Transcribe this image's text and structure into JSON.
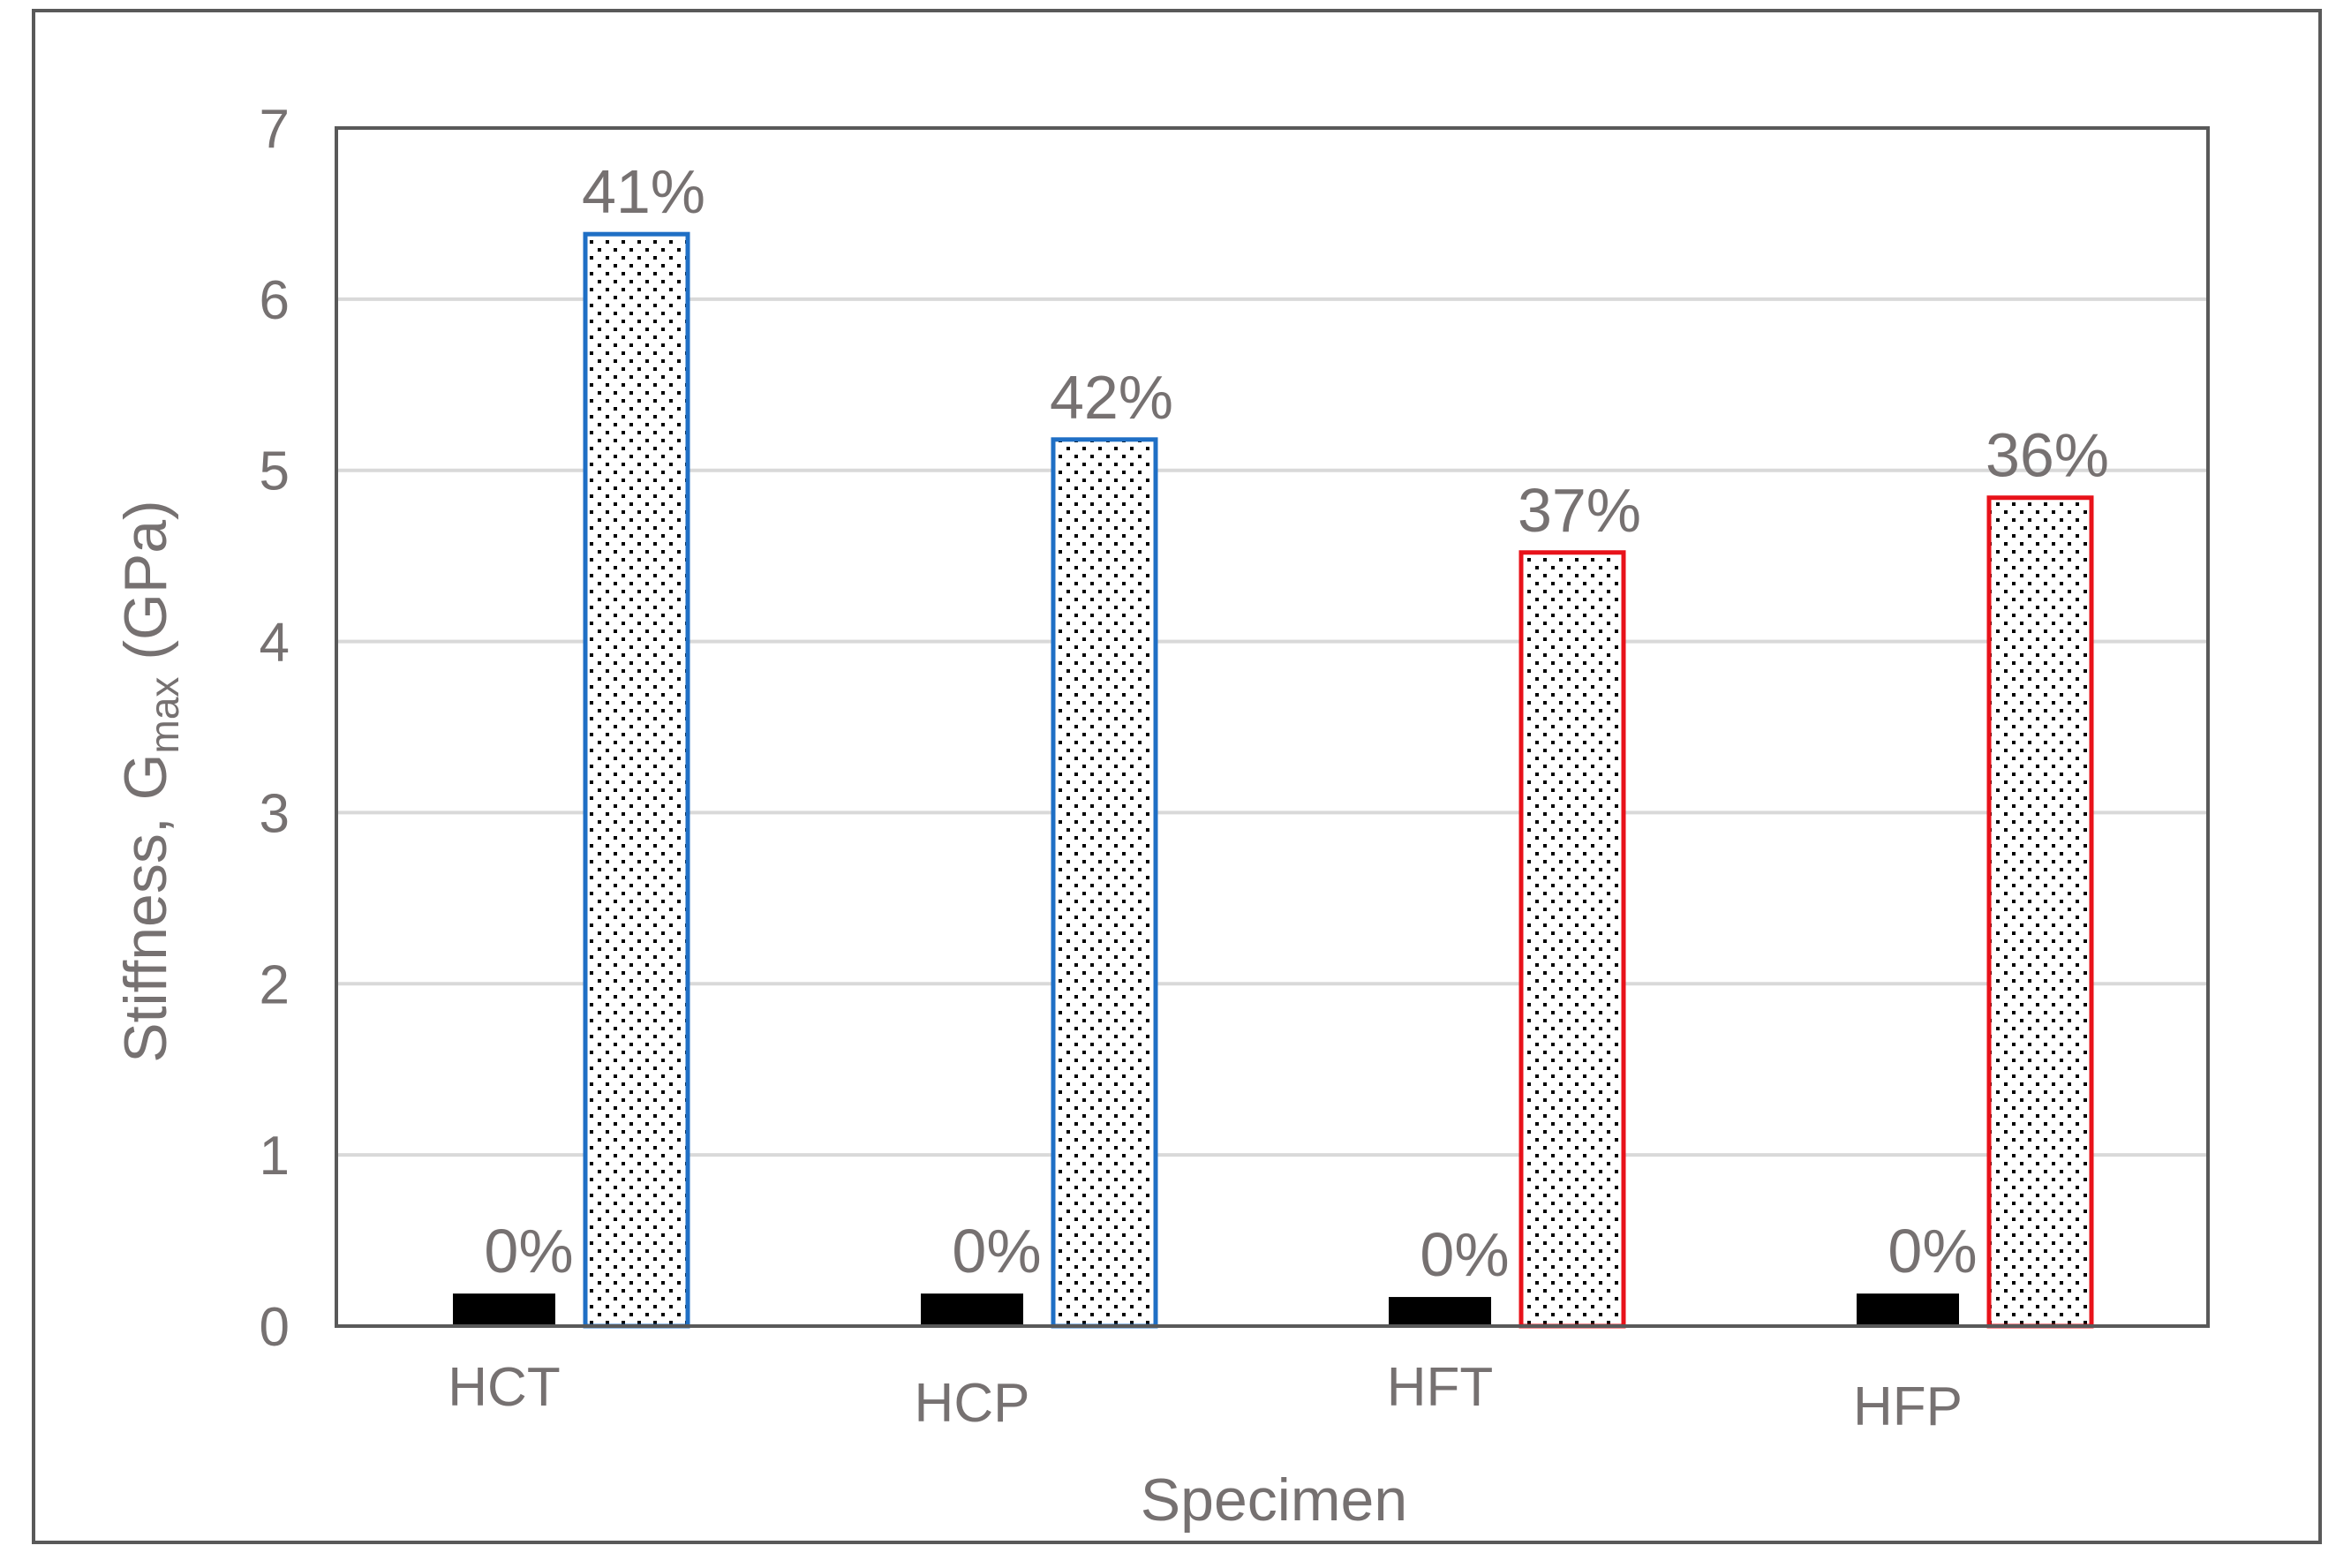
{
  "chart_data": {
    "type": "bar",
    "categories": [
      "HCT",
      "HCP",
      "HFT",
      "HFP"
    ],
    "series": [
      {
        "style": "solid-black",
        "values": [
          0.19,
          0.19,
          0.17,
          0.19
        ],
        "data_labels": [
          "0%",
          "0%",
          "0%",
          "0%"
        ]
      },
      {
        "style": "dotted",
        "values": [
          6.38,
          5.18,
          4.52,
          4.84
        ],
        "data_labels": [
          "41%",
          "42%",
          "37%",
          "36%"
        ],
        "outline_colors": [
          "#1f6fc5",
          "#1f6fc5",
          "#e8121a",
          "#e8121a"
        ]
      }
    ],
    "xlabel": "Specimen",
    "ylabel": "Stiffness, G",
    "ylabel_subscript": "max",
    "ylabel_suffix": " (GPa)",
    "yticks": [
      "0",
      "1",
      "2",
      "3",
      "4",
      "5",
      "6",
      "7"
    ],
    "ylim": [
      0,
      7
    ],
    "grid": true,
    "legend": "none",
    "colors": {
      "text": "#767171",
      "grid": "#d9d9d9",
      "frame": "#595959",
      "solid_bar": "#000000"
    }
  }
}
